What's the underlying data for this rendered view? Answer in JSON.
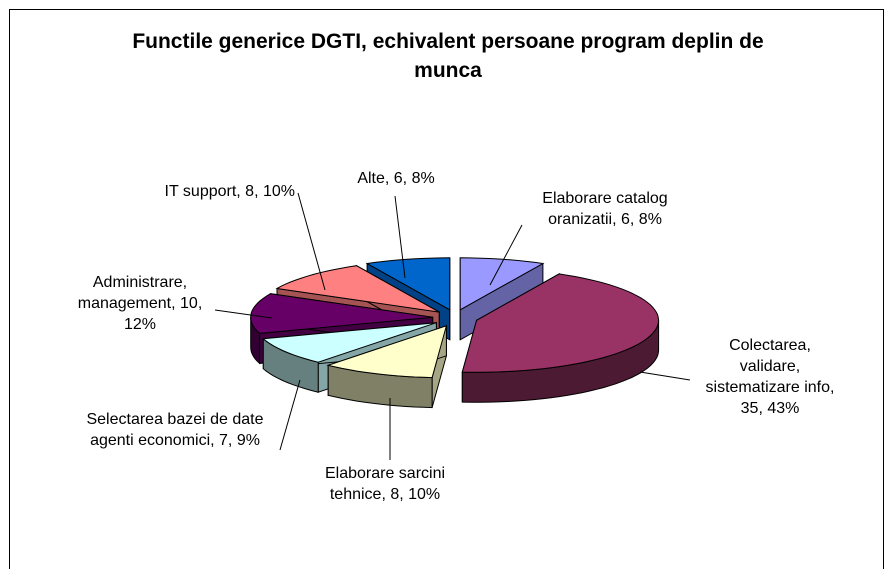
{
  "chart_data": {
    "type": "pie3d",
    "title": "Functile generice DGTI, echivalent persoane program deplin de munca",
    "values": [
      6,
      35,
      8,
      7,
      10,
      8,
      6
    ],
    "value_labels": [
      "Elaborare catalog oranizatii, 6, 8%",
      "Colectarea, validare, sistematizare info, 35, 43%",
      "Elaborare sarcini tehnice, 8, 10%",
      "Selectarea bazei de date agenti economici, 7, 9%",
      "Administrare, management, 10, 12%",
      "IT support, 8, 10%",
      "Alte, 6, 8%"
    ],
    "colors": [
      "#9999ff",
      "#993366",
      "#ffffcc",
      "#ccffff",
      "#660066",
      "#ff8080",
      "#0066cc"
    ]
  }
}
